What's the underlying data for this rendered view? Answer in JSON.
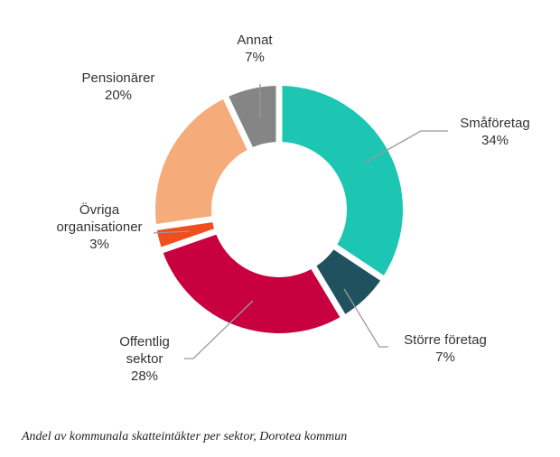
{
  "chart_data": {
    "type": "pie",
    "style": "donut",
    "slices": [
      {
        "label_lines": [
          "Småföretag"
        ],
        "pct": "34%",
        "value": 34,
        "color": "#1cc6b3"
      },
      {
        "label_lines": [
          "Större företag"
        ],
        "pct": "7%",
        "value": 7,
        "color": "#1f525e"
      },
      {
        "label_lines": [
          "Offentlig",
          "sektor"
        ],
        "pct": "28%",
        "value": 28,
        "color": "#c8003f"
      },
      {
        "label_lines": [
          "Övriga",
          "organisationer"
        ],
        "pct": "3%",
        "value": 3,
        "color": "#f04e1e"
      },
      {
        "label_lines": [
          "Pensionärer"
        ],
        "pct": "20%",
        "value": 20,
        "color": "#f5ab7a"
      },
      {
        "label_lines": [
          "Annat"
        ],
        "pct": "7%",
        "value": 7,
        "color": "#858585"
      }
    ]
  },
  "caption": "Andel av kommunala skatteintäkter per sektor, Dorotea kommun"
}
